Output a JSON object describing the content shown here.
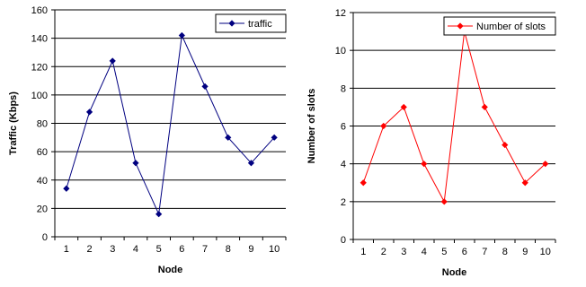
{
  "chart_data": [
    {
      "type": "line",
      "title": "",
      "xlabel": "Node",
      "ylabel": "Traffic (Kbps)",
      "categories": [
        "1",
        "2",
        "3",
        "4",
        "5",
        "6",
        "7",
        "8",
        "9",
        "10"
      ],
      "series": [
        {
          "name": "traffic",
          "values": [
            34,
            88,
            124,
            52,
            16,
            142,
            106,
            70,
            52,
            70
          ],
          "color": "#000080",
          "marker": "diamond"
        }
      ],
      "ylim": [
        0,
        160
      ],
      "yticks": [
        0,
        20,
        40,
        60,
        80,
        100,
        120,
        140,
        160
      ],
      "grid": true,
      "legend": "top-right"
    },
    {
      "type": "line",
      "title": "",
      "xlabel": "Node",
      "ylabel": "Number of slots",
      "categories": [
        "1",
        "2",
        "3",
        "4",
        "5",
        "6",
        "7",
        "8",
        "9",
        "10"
      ],
      "series": [
        {
          "name": "Number of slots",
          "values": [
            3,
            6,
            7,
            4,
            2,
            11,
            7,
            5,
            3,
            4
          ],
          "color": "#ff0000",
          "marker": "diamond"
        }
      ],
      "ylim": [
        0,
        12
      ],
      "yticks": [
        0,
        2,
        4,
        6,
        8,
        10,
        12
      ],
      "grid": true,
      "legend": "top-right"
    }
  ]
}
